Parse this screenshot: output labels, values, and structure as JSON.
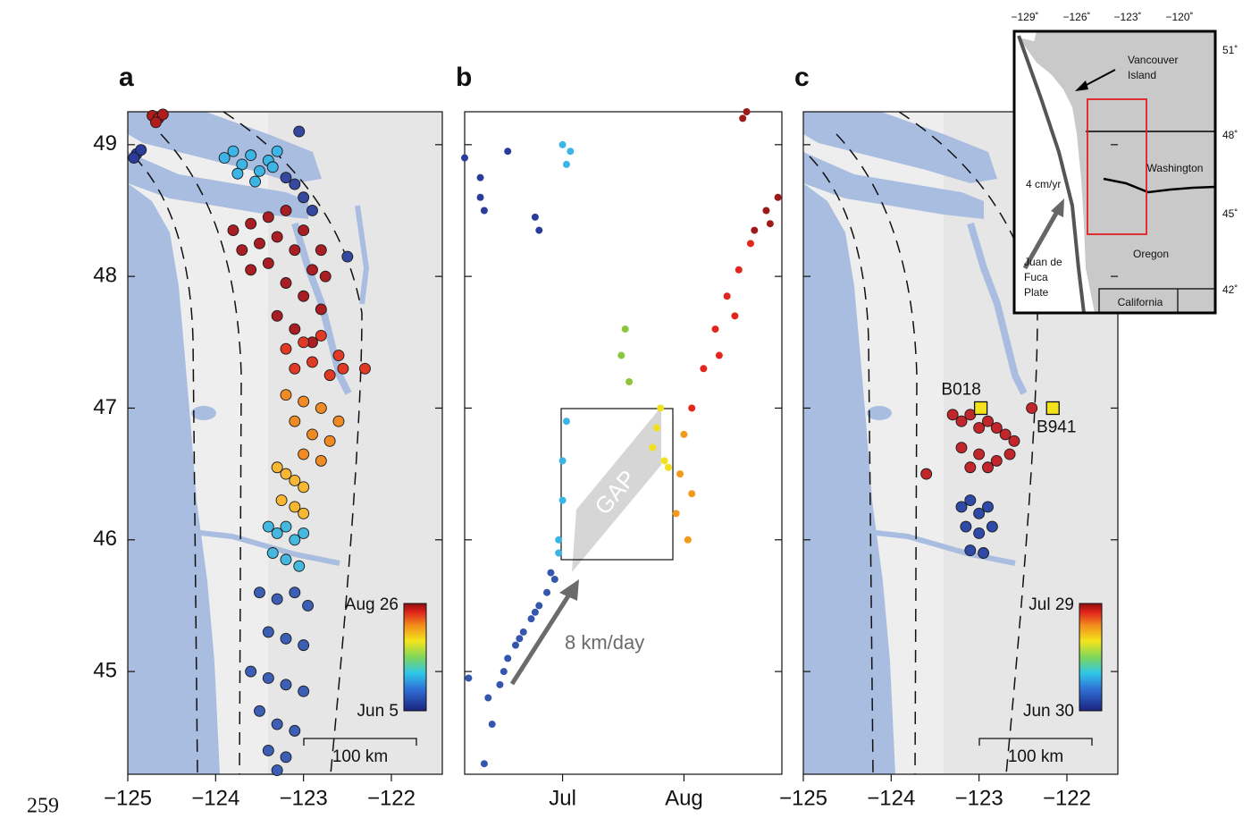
{
  "chart_data": [
    {
      "type": "scatter",
      "panel_label": "a",
      "xlim": [
        -125,
        -121.42
      ],
      "ylim": [
        44.22,
        49.25
      ],
      "xticks": [
        {
          "value": -125,
          "label": "−125"
        },
        {
          "value": -124,
          "label": "−124"
        },
        {
          "value": -123,
          "label": "−123"
        },
        {
          "value": -122,
          "label": "−122"
        }
      ],
      "yticks": [
        45,
        46,
        47,
        48,
        49
      ],
      "colorbar": {
        "top_label": "Aug 26",
        "bottom_label": "Jun 5"
      },
      "scale_bar": "100 km",
      "series": [
        {
          "color": "#b01c1c",
          "x": [
            -124.72,
            -124.65,
            -124.6,
            -124.68
          ],
          "y": [
            49.22,
            49.2,
            49.23,
            49.17
          ]
        },
        {
          "color": "#2b3d9a",
          "x": [
            -124.9,
            -124.85,
            -124.93
          ],
          "y": [
            48.93,
            48.96,
            48.9
          ]
        },
        {
          "color": "#3cb4e5",
          "x": [
            -123.9,
            -123.8,
            -123.7,
            -123.6,
            -123.5,
            -123.4,
            -123.3,
            -123.75,
            -123.55,
            -123.35
          ],
          "y": [
            48.9,
            48.95,
            48.85,
            48.92,
            48.8,
            48.88,
            48.95,
            48.78,
            48.72,
            48.83
          ]
        },
        {
          "color": "#34489f",
          "x": [
            -123.2,
            -123.1,
            -123.0,
            -122.9,
            -123.05,
            -122.5
          ],
          "y": [
            48.75,
            48.7,
            48.6,
            48.5,
            49.1,
            48.15
          ]
        },
        {
          "color": "#a81e22",
          "x": [
            -123.8,
            -123.6,
            -123.4,
            -123.2,
            -123.0,
            -122.8,
            -123.7,
            -123.5,
            -123.3,
            -123.1,
            -122.9,
            -122.75,
            -123.6,
            -123.4,
            -123.2,
            -123.0,
            -122.8,
            -123.3,
            -123.1,
            -122.9
          ],
          "y": [
            48.35,
            48.4,
            48.45,
            48.5,
            48.35,
            48.2,
            48.2,
            48.25,
            48.3,
            48.2,
            48.05,
            48.0,
            48.05,
            48.1,
            47.95,
            47.85,
            47.75,
            47.7,
            47.6,
            47.5
          ]
        },
        {
          "color": "#e03a26",
          "x": [
            -123.2,
            -123.0,
            -122.8,
            -122.6,
            -123.1,
            -122.9,
            -122.7,
            -122.55,
            -122.3
          ],
          "y": [
            47.45,
            47.5,
            47.55,
            47.4,
            47.3,
            47.35,
            47.25,
            47.3,
            47.3
          ]
        },
        {
          "color": "#f08a24",
          "x": [
            -123.2,
            -123.0,
            -122.8,
            -122.6,
            -123.1,
            -122.9,
            -122.7,
            -123.0,
            -122.8
          ],
          "y": [
            47.1,
            47.05,
            47.0,
            46.9,
            46.9,
            46.8,
            46.75,
            46.65,
            46.6
          ]
        },
        {
          "color": "#f7b733",
          "x": [
            -123.3,
            -123.2,
            -123.1,
            -123.0,
            -123.25,
            -123.1,
            -123.0
          ],
          "y": [
            46.55,
            46.5,
            46.45,
            46.4,
            46.3,
            46.25,
            46.2
          ]
        },
        {
          "color": "#45b8e0",
          "x": [
            -123.4,
            -123.3,
            -123.2,
            -123.1,
            -123.0,
            -123.35,
            -123.2,
            -123.05
          ],
          "y": [
            46.1,
            46.05,
            46.1,
            46.0,
            46.05,
            45.9,
            45.85,
            45.8
          ]
        },
        {
          "color": "#3c5fb5",
          "x": [
            -123.5,
            -123.3,
            -123.1,
            -122.95,
            -123.4,
            -123.2,
            -123.0,
            -123.6,
            -123.4,
            -123.2,
            -123.0,
            -123.5,
            -123.3,
            -123.1,
            -123.4,
            -123.2,
            -123.3
          ],
          "y": [
            45.6,
            45.55,
            45.6,
            45.5,
            45.3,
            45.25,
            45.2,
            45.0,
            44.95,
            44.9,
            44.85,
            44.7,
            44.6,
            44.55,
            44.4,
            44.35,
            44.25
          ]
        }
      ]
    },
    {
      "type": "scatter",
      "panel_label": "b",
      "xlim": [
        157,
        238
      ],
      "ylim": [
        44.22,
        49.25
      ],
      "xticks": [
        {
          "value": 182,
          "label": "Jul"
        },
        {
          "value": 213,
          "label": "Aug"
        }
      ],
      "yticks": [
        45,
        46,
        47,
        48,
        49
      ],
      "annotations": {
        "gap": "GAP",
        "rate": "8 km/day"
      },
      "series": [
        {
          "color": "#2b3d9a",
          "x": [
            157,
            161,
            161,
            162,
            168,
            175,
            176
          ],
          "y": [
            48.9,
            48.75,
            48.6,
            48.5,
            48.95,
            48.45,
            48.35
          ]
        },
        {
          "color": "#3556ad",
          "x": [
            158,
            162,
            164,
            166,
            168,
            170,
            172,
            174,
            176,
            178,
            180,
            163,
            167,
            171,
            175,
            179
          ],
          "y": [
            44.95,
            44.3,
            44.6,
            44.9,
            45.1,
            45.2,
            45.3,
            45.4,
            45.5,
            45.6,
            45.7,
            44.8,
            45.0,
            45.25,
            45.45,
            45.75
          ]
        },
        {
          "color": "#3cb4e5",
          "x": [
            181,
            182,
            182,
            183,
            183,
            184,
            182,
            181
          ],
          "y": [
            46.0,
            46.3,
            46.6,
            46.9,
            48.85,
            48.95,
            49.0,
            45.9
          ]
        },
        {
          "color": "#8cc63f",
          "x": [
            197,
            198,
            199
          ],
          "y": [
            47.4,
            47.6,
            47.2
          ]
        },
        {
          "color": "#f2e01e",
          "x": [
            205,
            206,
            207,
            208,
            209
          ],
          "y": [
            46.7,
            46.85,
            47.0,
            46.6,
            46.55
          ]
        },
        {
          "color": "#f29a1e",
          "x": [
            211,
            212,
            213,
            214,
            215
          ],
          "y": [
            46.2,
            46.5,
            46.8,
            46.0,
            46.35
          ]
        },
        {
          "color": "#e3261c",
          "x": [
            215,
            218,
            221,
            224,
            227,
            230,
            222,
            226
          ],
          "y": [
            47.0,
            47.3,
            47.6,
            47.85,
            48.05,
            48.25,
            47.4,
            47.7
          ]
        },
        {
          "color": "#9e1a1a",
          "x": [
            231,
            234,
            237,
            235,
            228,
            229
          ],
          "y": [
            48.35,
            48.5,
            48.6,
            48.4,
            49.2,
            49.25
          ]
        }
      ]
    },
    {
      "type": "scatter",
      "panel_label": "c",
      "xlim": [
        -125,
        -121.42
      ],
      "ylim": [
        44.22,
        49.25
      ],
      "xticks": [
        {
          "value": -125,
          "label": "−125"
        },
        {
          "value": -124,
          "label": "−124"
        },
        {
          "value": -123,
          "label": "−123"
        },
        {
          "value": -122,
          "label": "−122"
        }
      ],
      "yticks": [
        45,
        46,
        47,
        48,
        49
      ],
      "colorbar": {
        "top_label": "Jul 29",
        "bottom_label": "Jun 30"
      },
      "scale_bar": "100 km",
      "series": [
        {
          "color": "#c0262a",
          "x": [
            -123.3,
            -123.2,
            -123.1,
            -123.0,
            -122.9,
            -122.8,
            -122.7,
            -122.6,
            -123.2,
            -123.0,
            -122.8,
            -122.65,
            -123.1,
            -122.9,
            -123.6,
            -122.4
          ],
          "y": [
            46.95,
            46.9,
            46.95,
            46.85,
            46.9,
            46.85,
            46.8,
            46.75,
            46.7,
            46.65,
            46.6,
            46.65,
            46.55,
            46.55,
            46.5,
            47.0
          ]
        },
        {
          "color": "#2f4aa6",
          "x": [
            -123.2,
            -123.1,
            -123.0,
            -122.9,
            -123.15,
            -123.0,
            -122.85,
            -123.1,
            -122.95
          ],
          "y": [
            46.25,
            46.3,
            46.2,
            46.25,
            46.1,
            46.05,
            46.1,
            45.92,
            45.9
          ]
        }
      ],
      "stations": [
        {
          "label": "B018",
          "x": -122.98,
          "y": 47.0
        },
        {
          "label": "B941",
          "x": -122.16,
          "y": 47.0
        }
      ]
    }
  ],
  "inset": {
    "top_ticks": [
      "−129˚",
      "−126˚",
      "−123˚",
      "−120˚"
    ],
    "right_ticks": [
      "51˚",
      "48˚",
      "45˚",
      "42˚"
    ],
    "vancouver_island": [
      "Vancouver",
      "Island"
    ],
    "washington": "Washington",
    "oregon": "Oregon",
    "california": "California",
    "rate": "4 cm/yr",
    "plate": [
      "Juan de",
      "Fuca",
      "Plate"
    ]
  },
  "page_number": "259"
}
